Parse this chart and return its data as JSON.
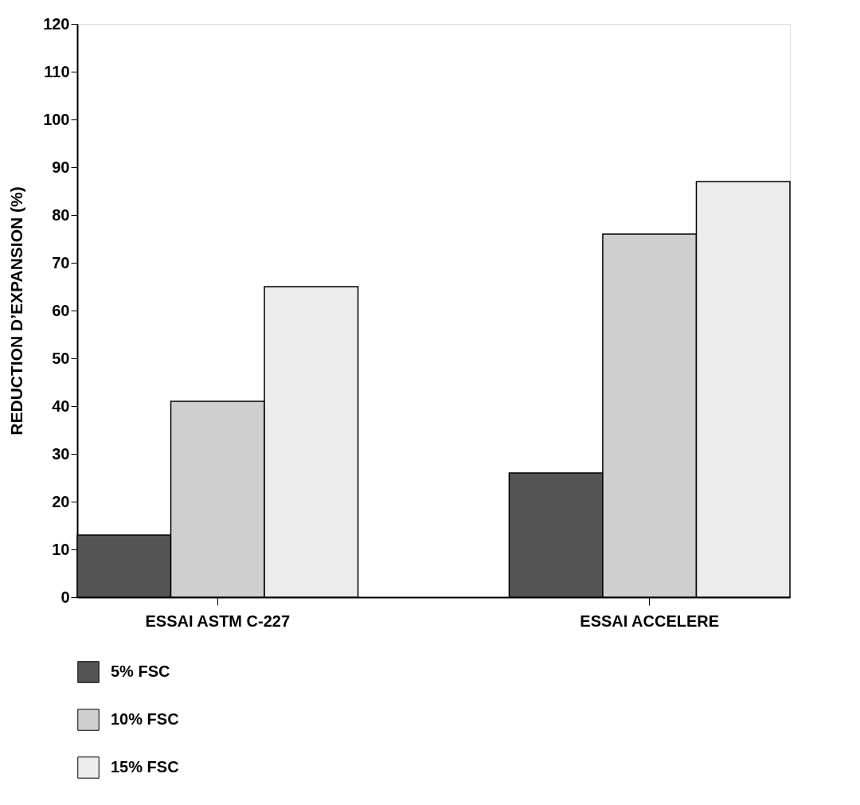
{
  "chart_data": {
    "type": "bar",
    "ylabel": "REDUCTION D’EXPANSION (%)",
    "categories": [
      "ESSAI ASTM C-227",
      "ESSAI ACCELERE"
    ],
    "series": [
      {
        "name": "5% FSC",
        "color": "#555555",
        "values": [
          13,
          26
        ]
      },
      {
        "name": "10% FSC",
        "color": "#cfcfcf",
        "values": [
          41,
          76
        ]
      },
      {
        "name": "15% FSC",
        "color": "#ececec",
        "values": [
          65,
          87
        ]
      }
    ],
    "ylim": [
      0,
      120
    ],
    "yticks": [
      0,
      10,
      20,
      30,
      40,
      50,
      60,
      70,
      80,
      90,
      100,
      110,
      120
    ],
    "grid": false,
    "legend": "bottom left"
  }
}
